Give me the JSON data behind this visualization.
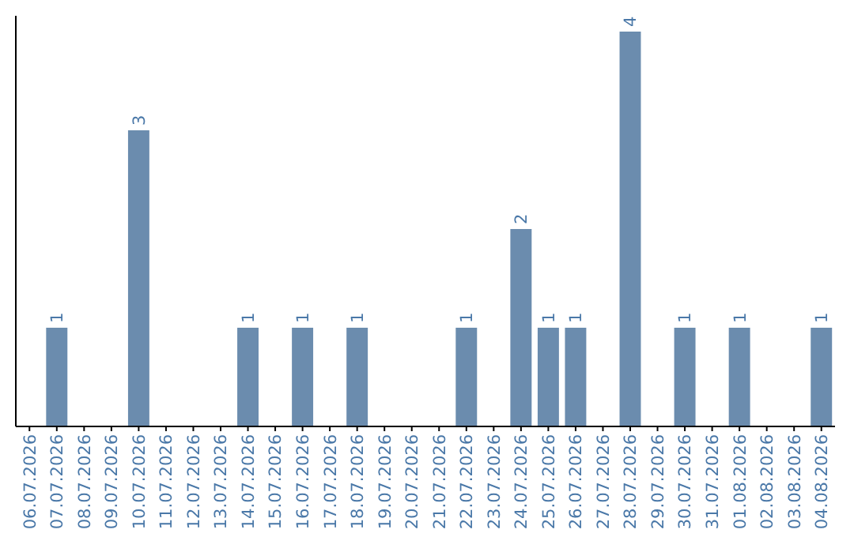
{
  "chart_data": {
    "type": "bar",
    "categories": [
      "06.07.2026",
      "07.07.2026",
      "08.07.2026",
      "09.07.2026",
      "10.07.2026",
      "11.07.2026",
      "12.07.2026",
      "13.07.2026",
      "14.07.2026",
      "15.07.2026",
      "16.07.2026",
      "17.07.2026",
      "18.07.2026",
      "19.07.2026",
      "20.07.2026",
      "21.07.2026",
      "22.07.2026",
      "23.07.2026",
      "24.07.2026",
      "25.07.2026",
      "26.07.2026",
      "27.07.2026",
      "28.07.2026",
      "29.07.2026",
      "30.07.2026",
      "31.07.2026",
      "01.08.2026",
      "02.08.2026",
      "03.08.2026",
      "04.08.2026"
    ],
    "values": [
      0,
      1,
      0,
      0,
      3,
      0,
      0,
      0,
      1,
      0,
      1,
      0,
      1,
      0,
      0,
      0,
      1,
      0,
      2,
      1,
      1,
      0,
      4,
      0,
      1,
      0,
      1,
      0,
      0,
      1
    ],
    "value_labels": [
      null,
      "1",
      null,
      null,
      "3",
      null,
      null,
      null,
      "1",
      null,
      "1",
      null,
      "1",
      null,
      null,
      null,
      "1",
      null,
      "2",
      "1",
      "1",
      null,
      "4",
      null,
      "1",
      null,
      "1",
      null,
      null,
      "1"
    ],
    "color": "#6b8cae",
    "ylim": [
      0,
      4.16
    ],
    "tick_labels": "x"
  }
}
